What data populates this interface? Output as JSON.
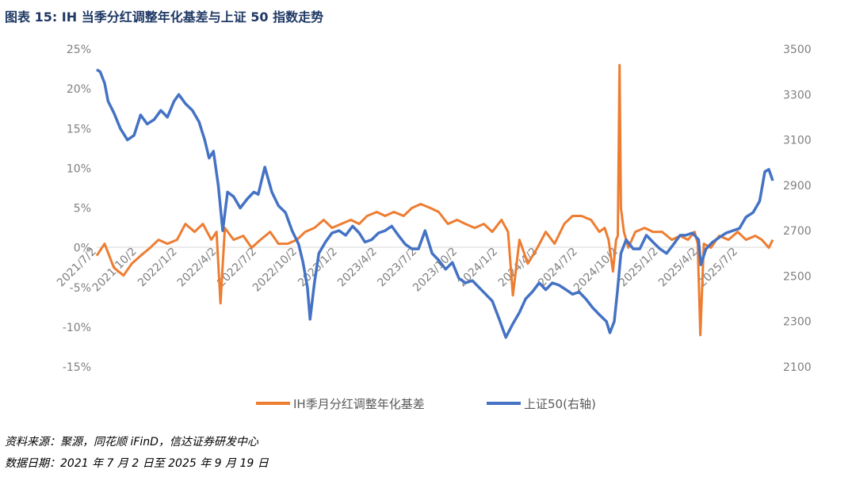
{
  "title": "图表 15:  IH 当季分红调整年化基差与上证 50 指数走势",
  "source_note": "资料来源：聚源，同花顺 iFinD，信达证券研发中心",
  "date_note": "数据日期：2021 年 7 月 2 日至 2025 年 9 月 19 日",
  "chart_data": {
    "type": "line",
    "x_tick_labels": [
      "2021/7/2",
      "2021/10/2",
      "2022/1/2",
      "2022/4/2",
      "2022/7/2",
      "2022/10/2",
      "2023/1/2",
      "2023/4/2",
      "2023/7/2",
      "2023/10/2",
      "2024/1/2",
      "2024/4/2",
      "2024/7/2",
      "2024/10/2",
      "2025/1/2",
      "2025/4/2",
      "2025/7/2"
    ],
    "x_range": [
      "2021/7/2",
      "2025/9/19"
    ],
    "left_axis": {
      "min": -0.15,
      "max": 0.25,
      "step": 0.05,
      "tick_labels": [
        "25%",
        "20%",
        "15%",
        "10%",
        "5%",
        "0%",
        "-5%",
        "-10%",
        "-15%"
      ]
    },
    "right_axis": {
      "min": 2100,
      "max": 3500,
      "step": 200,
      "tick_labels": [
        "3500",
        "3300",
        "3100",
        "2900",
        "2700",
        "2500",
        "2300",
        "2100"
      ]
    },
    "grid": false,
    "legend_position": "bottom",
    "series": [
      {
        "name": "IH季月分红调整年化基差",
        "axis": "left",
        "color": "#ed7d31",
        "x": [
          "2021/7/2",
          "2021/7/20",
          "2021/8/10",
          "2021/9/1",
          "2021/9/20",
          "2021/10/10",
          "2021/11/1",
          "2021/11/20",
          "2021/12/10",
          "2022/1/1",
          "2022/1/20",
          "2022/2/10",
          "2022/3/1",
          "2022/3/20",
          "2022/4/1",
          "2022/4/10",
          "2022/4/20",
          "2022/5/10",
          "2022/6/1",
          "2022/6/20",
          "2022/7/10",
          "2022/8/1",
          "2022/8/20",
          "2022/9/10",
          "2022/10/1",
          "2022/10/20",
          "2022/11/10",
          "2022/12/1",
          "2022/12/20",
          "2023/1/10",
          "2023/2/1",
          "2023/2/20",
          "2023/3/10",
          "2023/4/1",
          "2023/4/20",
          "2023/5/10",
          "2023/6/1",
          "2023/6/20",
          "2023/7/10",
          "2023/8/1",
          "2023/8/20",
          "2023/9/10",
          "2023/10/1",
          "2023/10/20",
          "2023/11/10",
          "2023/12/1",
          "2023/12/20",
          "2024/1/10",
          "2024/1/25",
          "2024/2/5",
          "2024/2/20",
          "2024/3/10",
          "2024/4/1",
          "2024/4/20",
          "2024/5/10",
          "2024/6/1",
          "2024/6/20",
          "2024/7/10",
          "2024/8/1",
          "2024/8/20",
          "2024/9/1",
          "2024/9/10",
          "2024/9/20",
          "2024/9/27",
          "2024/10/1",
          "2024/10/5",
          "2024/10/8",
          "2024/10/15",
          "2024/10/25",
          "2024/11/10",
          "2024/12/1",
          "2024/12/20",
          "2025/1/10",
          "2025/2/1",
          "2025/2/20",
          "2025/3/10",
          "2025/3/25",
          "2025/4/1",
          "2025/4/7",
          "2025/4/15",
          "2025/5/1",
          "2025/5/20",
          "2025/6/10",
          "2025/7/1",
          "2025/7/20",
          "2025/8/10",
          "2025/8/25",
          "2025/9/10",
          "2025/9/19"
        ],
        "values": [
          -0.01,
          0.005,
          -0.025,
          -0.035,
          -0.02,
          -0.01,
          0.0,
          0.01,
          0.005,
          0.01,
          0.03,
          0.02,
          0.03,
          0.01,
          0.02,
          -0.07,
          0.025,
          0.01,
          0.015,
          0.0,
          0.01,
          0.02,
          0.005,
          0.005,
          0.01,
          0.02,
          0.025,
          0.035,
          0.025,
          0.03,
          0.035,
          0.03,
          0.04,
          0.045,
          0.04,
          0.045,
          0.04,
          0.05,
          0.055,
          0.05,
          0.045,
          0.03,
          0.035,
          0.03,
          0.025,
          0.03,
          0.02,
          0.035,
          0.02,
          -0.06,
          0.01,
          -0.02,
          0.0,
          0.02,
          0.005,
          0.03,
          0.04,
          0.04,
          0.035,
          0.02,
          0.025,
          0.01,
          -0.03,
          0.01,
          0.015,
          0.23,
          0.05,
          0.02,
          0.0,
          0.02,
          0.025,
          0.02,
          0.02,
          0.01,
          0.015,
          0.01,
          0.02,
          0.005,
          -0.11,
          0.005,
          0.0,
          0.015,
          0.01,
          0.02,
          0.01,
          0.015,
          0.01,
          0.0,
          0.01
        ]
      },
      {
        "name": "上证50(右轴)",
        "axis": "right",
        "color": "#4472c4",
        "x": [
          "2021/7/2",
          "2021/7/10",
          "2021/7/20",
          "2021/7/28",
          "2021/8/10",
          "2021/8/25",
          "2021/9/10",
          "2021/9/25",
          "2021/10/10",
          "2021/10/25",
          "2021/11/10",
          "2021/11/25",
          "2021/12/10",
          "2021/12/25",
          "2022/1/5",
          "2022/1/20",
          "2022/2/5",
          "2022/2/20",
          "2022/3/5",
          "2022/3/15",
          "2022/3/25",
          "2022/4/5",
          "2022/4/15",
          "2022/4/26",
          "2022/5/10",
          "2022/5/25",
          "2022/6/10",
          "2022/6/25",
          "2022/7/5",
          "2022/7/20",
          "2022/8/5",
          "2022/8/20",
          "2022/9/5",
          "2022/9/20",
          "2022/10/5",
          "2022/10/15",
          "2022/10/25",
          "2022/10/31",
          "2022/11/10",
          "2022/11/20",
          "2022/12/5",
          "2022/12/20",
          "2023/1/5",
          "2023/1/20",
          "2023/2/5",
          "2023/2/20",
          "2023/3/5",
          "2023/3/20",
          "2023/4/5",
          "2023/4/20",
          "2023/5/5",
          "2023/5/20",
          "2023/6/5",
          "2023/6/20",
          "2023/7/5",
          "2023/7/20",
          "2023/8/5",
          "2023/8/20",
          "2023/9/5",
          "2023/9/20",
          "2023/10/5",
          "2023/10/20",
          "2023/11/5",
          "2023/11/20",
          "2023/12/5",
          "2023/12/20",
          "2024/1/5",
          "2024/1/20",
          "2024/2/5",
          "2024/2/20",
          "2024/3/5",
          "2024/3/20",
          "2024/4/5",
          "2024/4/20",
          "2024/5/5",
          "2024/5/20",
          "2024/6/5",
          "2024/6/20",
          "2024/7/5",
          "2024/7/20",
          "2024/8/5",
          "2024/8/20",
          "2024/9/5",
          "2024/9/13",
          "2024/9/23",
          "2024/9/30",
          "2024/10/8",
          "2024/10/20",
          "2024/11/5",
          "2024/11/20",
          "2024/12/5",
          "2024/12/20",
          "2025/1/5",
          "2025/1/20",
          "2025/2/5",
          "2025/2/20",
          "2025/3/5",
          "2025/3/20",
          "2025/4/3",
          "2025/4/8",
          "2025/4/20",
          "2025/5/5",
          "2025/5/20",
          "2025/6/5",
          "2025/6/20",
          "2025/7/5",
          "2025/7/20",
          "2025/8/5",
          "2025/8/20",
          "2025/9/1",
          "2025/9/10",
          "2025/9/19"
        ],
        "values": [
          3410,
          3400,
          3350,
          3270,
          3220,
          3150,
          3100,
          3120,
          3210,
          3170,
          3190,
          3230,
          3200,
          3270,
          3300,
          3260,
          3230,
          3180,
          3100,
          3020,
          3050,
          2900,
          2700,
          2870,
          2850,
          2800,
          2840,
          2870,
          2860,
          2980,
          2870,
          2810,
          2780,
          2700,
          2640,
          2560,
          2450,
          2310,
          2470,
          2600,
          2650,
          2690,
          2700,
          2680,
          2720,
          2690,
          2650,
          2660,
          2690,
          2700,
          2720,
          2680,
          2640,
          2620,
          2620,
          2700,
          2600,
          2570,
          2530,
          2560,
          2490,
          2470,
          2480,
          2450,
          2420,
          2390,
          2310,
          2230,
          2290,
          2340,
          2400,
          2430,
          2470,
          2440,
          2470,
          2460,
          2440,
          2420,
          2430,
          2400,
          2360,
          2330,
          2300,
          2250,
          2300,
          2430,
          2600,
          2660,
          2620,
          2620,
          2680,
          2650,
          2620,
          2600,
          2640,
          2680,
          2680,
          2690,
          2660,
          2550,
          2620,
          2650,
          2670,
          2690,
          2700,
          2710,
          2760,
          2780,
          2830,
          2960,
          2970,
          2920
        ]
      }
    ]
  }
}
